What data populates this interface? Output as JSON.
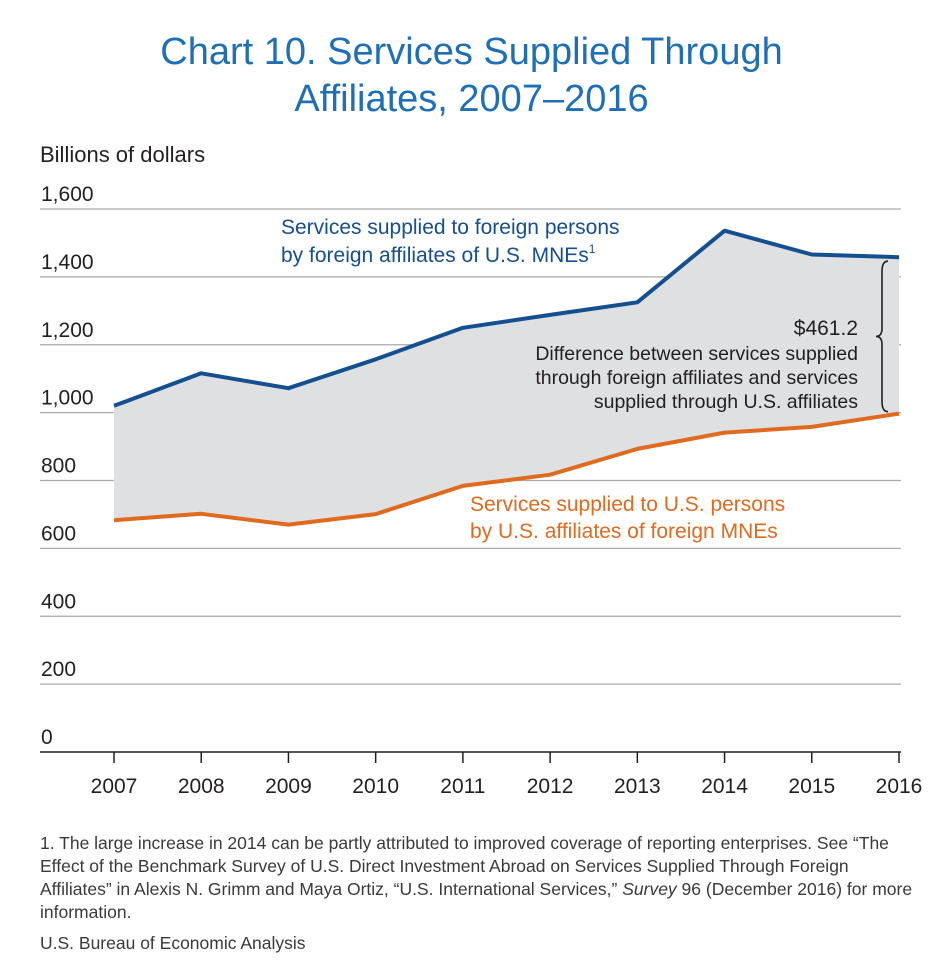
{
  "title_line1": "Chart 10. Services Supplied Through",
  "title_line2": "Affiliates, 2007–2016",
  "chart_data": {
    "type": "area",
    "ylabel": "Billions of dollars",
    "ylim": [
      0,
      1600
    ],
    "yticks": [
      0,
      200,
      400,
      600,
      800,
      1000,
      1200,
      1400,
      1600
    ],
    "ytick_labels": [
      "0",
      "200",
      "400",
      "600",
      "800",
      "1,000",
      "1,200",
      "1,400",
      "1,600"
    ],
    "categories": [
      "2007",
      "2008",
      "2009",
      "2010",
      "2011",
      "2012",
      "2013",
      "2014",
      "2015",
      "2016"
    ],
    "grid": true,
    "series": [
      {
        "label_line1": "Services supplied to foreign persons",
        "label_line2": "by foreign affiliates of U.S. MNEs",
        "label_superscript": "1",
        "color": "#144f8f",
        "values": [
          1020,
          1116,
          1072,
          1157,
          1250,
          1288,
          1325,
          1536,
          1466,
          1458
        ]
      },
      {
        "label_line1": "Services supplied to U.S. persons",
        "label_line2": "by U.S. affiliates of foreign MNEs",
        "color": "#e06a1e",
        "values": [
          683,
          702,
          670,
          701,
          784,
          817,
          893,
          941,
          958,
          997
        ]
      }
    ],
    "fill_between_color": "#dfe0e2",
    "annotation": {
      "value": "$461.2",
      "line1": "Difference between services supplied",
      "line2": "through foreign affiliates and services",
      "line3": "supplied through U.S. affiliates"
    }
  },
  "footnote_part1": "1. The large increase in 2014 can be partly attributed to improved coverage of reporting enterprises. See “The Effect of the Benchmark Survey of U.S. Direct Investment Abroad on Services Supplied Through Foreign Affiliates” in Alexis N. Grimm and Maya Ortiz, “U.S. International Services,” ",
  "footnote_italic": "Survey",
  "footnote_part2": " 96 (December 2016) for more information.",
  "source": "U.S. Bureau of Economic Analysis"
}
